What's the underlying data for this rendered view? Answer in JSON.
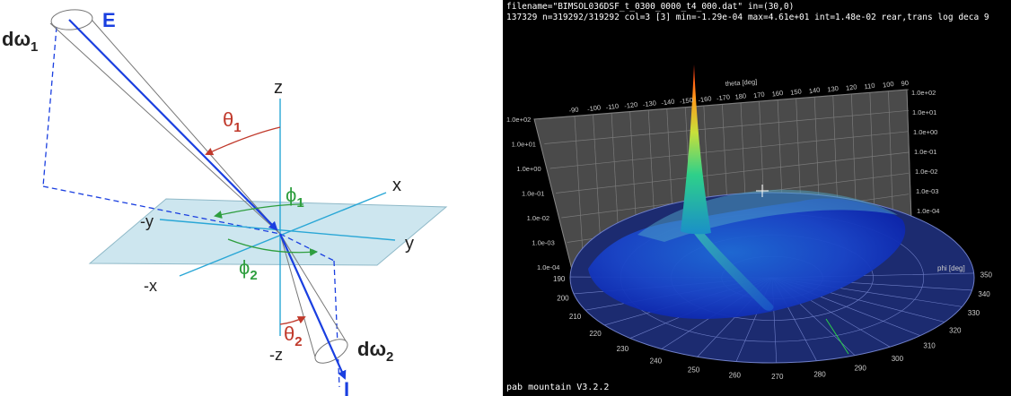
{
  "left": {
    "e_label": "E",
    "i_label": "I",
    "z_label": "z",
    "negz_label": "-z",
    "x_label": "x",
    "negx_label": "-x",
    "y_label": "y",
    "negy_label": "-y",
    "theta1": {
      "base": "θ",
      "sub": "1"
    },
    "theta2": {
      "base": "θ",
      "sub": "2"
    },
    "phi1": {
      "base": "ϕ",
      "sub": "1"
    },
    "phi2": {
      "base": "ϕ",
      "sub": "2"
    },
    "domega1": {
      "base": "dω",
      "sub": "1"
    },
    "domega2": {
      "base": "dω",
      "sub": "2"
    },
    "colors": {
      "beam": "#1a3fe0",
      "theta": "#c0392b",
      "phi": "#2e9e3e",
      "axis": "#2aa7d6",
      "plane": "#cde6ef"
    }
  },
  "right": {
    "header_line1": "filename=\"BIMSOL036DSF_t_0300_0000_t4_000.dat\" in=(30,0)",
    "header_line2": "137329 n=319292/319292 col=3 [3] min=-1.29e-04 max=4.61e+01 int=1.48e-02 rear,trans log deca 9",
    "footer": "pab mountain V3.2.2",
    "theta_axis_label": "theta [deg]",
    "phi_axis_label": "phi [deg]",
    "theta_ticks": [
      "-90",
      "-100",
      "-110",
      "-120",
      "-130",
      "-140",
      "-150",
      "-160",
      "-170",
      "180",
      "170",
      "160",
      "150",
      "140",
      "130",
      "120",
      "110",
      "100",
      "90"
    ],
    "left_log_ticks": [
      "1.0e+02",
      "1.0e+01",
      "1.0e+00",
      "1.0e-01",
      "1.0e-02",
      "1.0e-03",
      "1.0e-04"
    ],
    "right_log_ticks": [
      "1.0e+02",
      "1.0e+01",
      "1.0e+00",
      "1.0e-01",
      "1.0e-02",
      "1.0e-03",
      "1.0e-04"
    ],
    "phi_ticks": [
      "190",
      "200",
      "210",
      "220",
      "230",
      "240",
      "250",
      "260",
      "270",
      "280",
      "290",
      "300",
      "310",
      "320",
      "330",
      "340",
      "350"
    ]
  }
}
